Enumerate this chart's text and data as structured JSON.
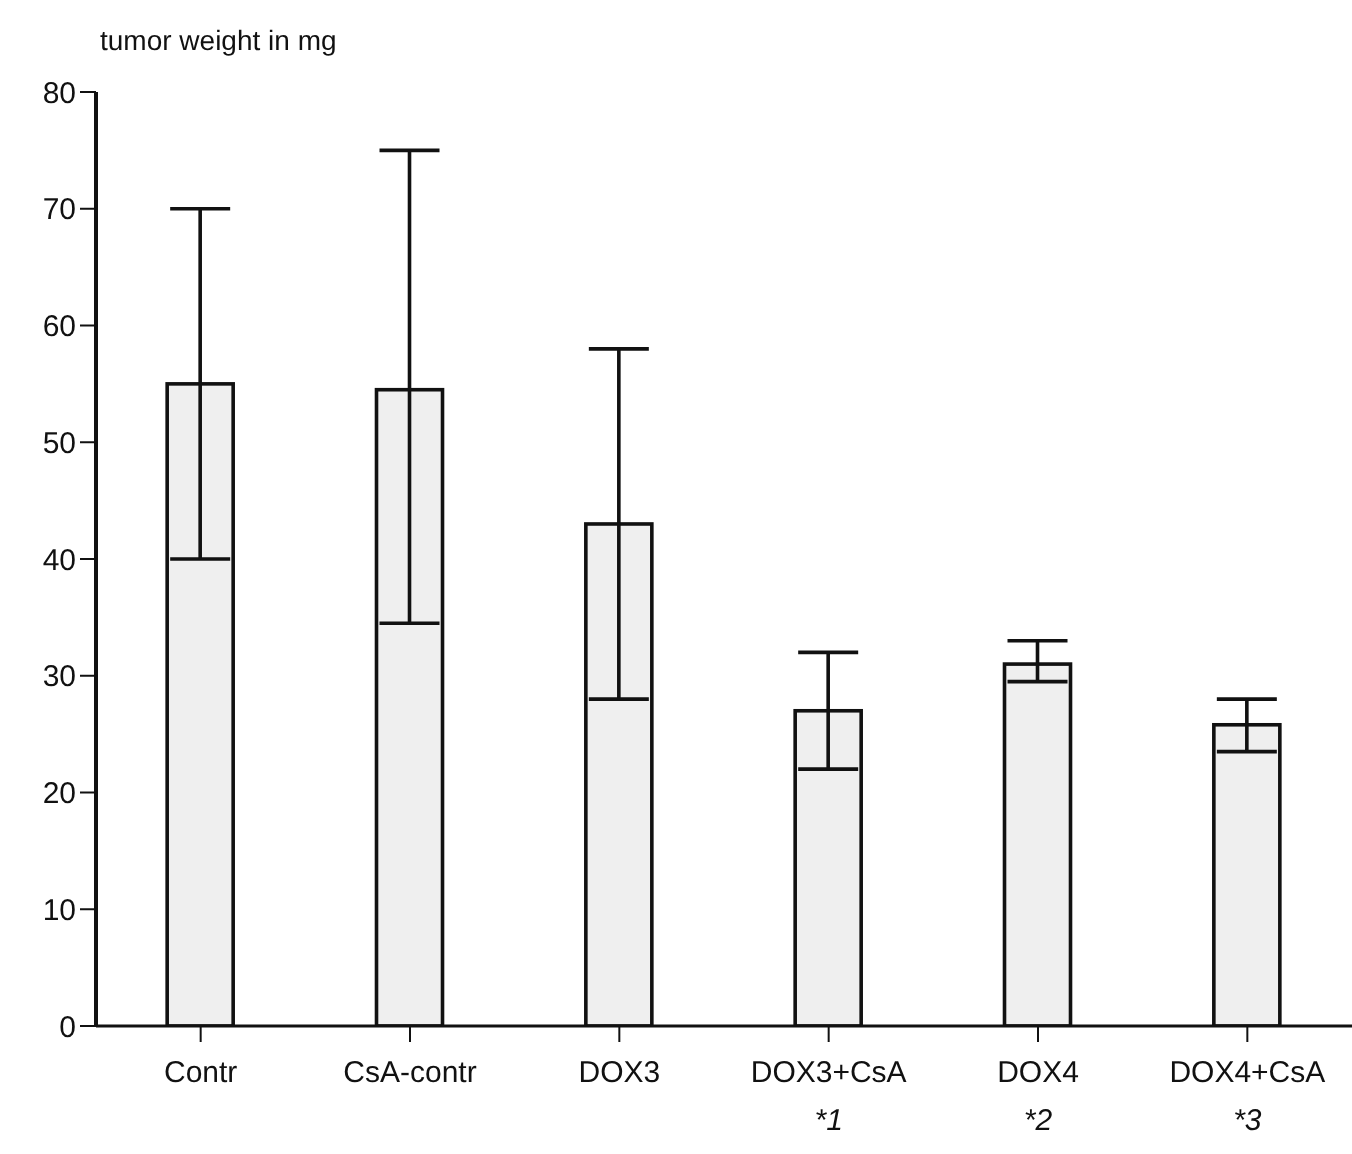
{
  "chart_data": {
    "type": "bar",
    "ylabel": "tumor weight in mg",
    "categories": [
      "Contr",
      "CsA-contr",
      "DOX3",
      "DOX3+CsA\n*1",
      "DOX4\n*2",
      "DOX4+CsA\n*3"
    ],
    "values": [
      55,
      54.5,
      43,
      27,
      31,
      25.8
    ],
    "errors": [
      [
        40,
        70
      ],
      [
        34.5,
        75
      ],
      [
        28,
        58
      ],
      [
        22,
        32
      ],
      [
        29.5,
        33
      ],
      [
        23.5,
        28
      ]
    ],
    "color": "#efefef",
    "ylim": [
      0,
      80
    ],
    "yticks": [
      0,
      10,
      20,
      30,
      40,
      50,
      60,
      70,
      80
    ],
    "grid": false,
    "legend": false
  }
}
